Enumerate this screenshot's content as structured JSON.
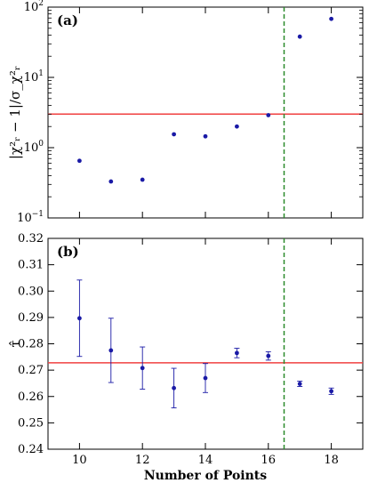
{
  "chart_data": [
    {
      "type": "scatter",
      "panel_label": "(a)",
      "ylabel": "|χ²ᵣ − 1|/σ_χ²ᵣ",
      "yscale": "log",
      "xlim": [
        9,
        19
      ],
      "ylim": [
        0.1,
        100
      ],
      "yticks": [
        0.1,
        1,
        10,
        100
      ],
      "ytick_labels": [
        [
          "10",
          "−1"
        ],
        [
          "10",
          "0"
        ],
        [
          "10",
          "1"
        ],
        [
          "10",
          "2"
        ]
      ],
      "x": [
        10,
        11,
        12,
        13,
        14,
        15,
        16,
        17,
        18
      ],
      "y": [
        0.65,
        0.33,
        0.35,
        1.55,
        1.45,
        2.0,
        2.9,
        38,
        68
      ],
      "hline": {
        "y": 3.0,
        "color": "#f04040"
      },
      "vline": {
        "x": 16.5,
        "color": "#2a8a2a",
        "style": "dashed"
      },
      "marker_color": "#1a1aa6",
      "grid": false
    },
    {
      "type": "scatter",
      "panel_label": "(b)",
      "ylabel": "τ̂",
      "xlabel": "Number of Points",
      "xlim": [
        9,
        19
      ],
      "ylim": [
        0.24,
        0.32
      ],
      "xticks": [
        10,
        12,
        14,
        16,
        18
      ],
      "xtick_labels": [
        "10",
        "12",
        "14",
        "16",
        "18"
      ],
      "yticks": [
        0.24,
        0.25,
        0.26,
        0.27,
        0.28,
        0.29,
        0.3,
        0.31,
        0.32
      ],
      "ytick_labels": [
        "0.24",
        "0.25",
        "0.26",
        "0.27",
        "0.28",
        "0.29",
        "0.30",
        "0.31",
        "0.32"
      ],
      "x": [
        10,
        11,
        12,
        13,
        14,
        15,
        16,
        17,
        18
      ],
      "y": [
        0.2897,
        0.2775,
        0.2708,
        0.2632,
        0.267,
        0.2765,
        0.2754,
        0.2648,
        0.262
      ],
      "yerr": [
        0.0145,
        0.0122,
        0.008,
        0.0075,
        0.0055,
        0.0018,
        0.0016,
        0.001,
        0.0012
      ],
      "hline": {
        "y": 0.2728,
        "color": "#f04040"
      },
      "vline": {
        "x": 16.5,
        "color": "#2a8a2a",
        "style": "dashed"
      },
      "marker_color": "#1a1aa6",
      "grid": false
    }
  ]
}
